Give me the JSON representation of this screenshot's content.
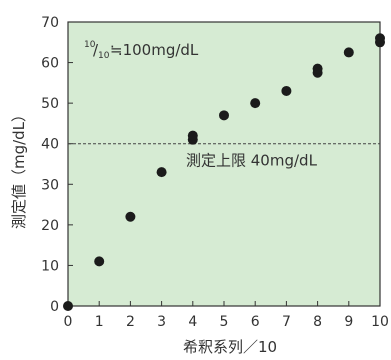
{
  "colors": {
    "plot_background": "#d6ebd3",
    "axis": "#333333",
    "points": "#1b1b1b",
    "limit_line": "#444444"
  },
  "chart_data": {
    "type": "scatter",
    "xlabel": "希釈系列／10",
    "ylabel": "測定値（mg/dL）",
    "xlim": [
      0,
      10
    ],
    "ylim": [
      0,
      70
    ],
    "x_ticks": [
      "0",
      "1",
      "2",
      "3",
      "4",
      "5",
      "6",
      "7",
      "8",
      "9",
      "10"
    ],
    "y_ticks": [
      "0",
      "10",
      "20",
      "30",
      "40",
      "50",
      "60",
      "70"
    ],
    "grid": false,
    "points": [
      {
        "x": 0,
        "y": 0
      },
      {
        "x": 1,
        "y": 11
      },
      {
        "x": 2,
        "y": 22
      },
      {
        "x": 3,
        "y": 33
      },
      {
        "x": 4,
        "y": 41
      },
      {
        "x": 4,
        "y": 42
      },
      {
        "x": 5,
        "y": 47
      },
      {
        "x": 6,
        "y": 50
      },
      {
        "x": 7,
        "y": 53
      },
      {
        "x": 8,
        "y": 57.5
      },
      {
        "x": 8,
        "y": 58.5
      },
      {
        "x": 9,
        "y": 62.5
      },
      {
        "x": 10,
        "y": 65
      },
      {
        "x": 10,
        "y": 66
      }
    ],
    "reference_line": {
      "y": 40,
      "style": "dashed",
      "label": "測定上限 40mg/dL"
    },
    "annotation": {
      "fraction_num": "10",
      "fraction_den": "10",
      "text": "≒100mg/dL"
    }
  }
}
